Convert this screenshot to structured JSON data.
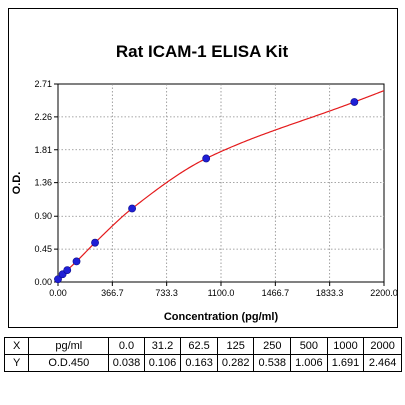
{
  "chart_data": {
    "type": "scatter",
    "title": "Rat ICAM-1 ELISA Kit",
    "xlabel": "Concentration (pg/ml)",
    "ylabel": "O.D.",
    "xlim": [
      0,
      2200
    ],
    "ylim": [
      0,
      2.71
    ],
    "x_ticks": [
      "0.00",
      "366.7",
      "733.3",
      "1100.0",
      "1466.7",
      "1833.3",
      "2200.0"
    ],
    "y_ticks": [
      "0.00",
      "0.45",
      "0.90",
      "1.36",
      "1.81",
      "2.26",
      "2.71"
    ],
    "grid": true,
    "points": {
      "x": [
        0,
        31.2,
        62.5,
        125,
        250,
        500,
        1000,
        2000
      ],
      "y": [
        0.038,
        0.106,
        0.163,
        0.282,
        0.538,
        1.006,
        1.691,
        2.464
      ]
    },
    "curve_color": "#e41a1c",
    "point_color": "#1f1fd6"
  },
  "table": {
    "rows": [
      [
        "X",
        "pg/ml",
        "0.0",
        "31.2",
        "62.5",
        "125",
        "250",
        "500",
        "1000",
        "2000"
      ],
      [
        "Y",
        "O.D.450",
        "0.038",
        "0.106",
        "0.163",
        "0.282",
        "0.538",
        "1.006",
        "1.691",
        "2.464"
      ]
    ]
  }
}
